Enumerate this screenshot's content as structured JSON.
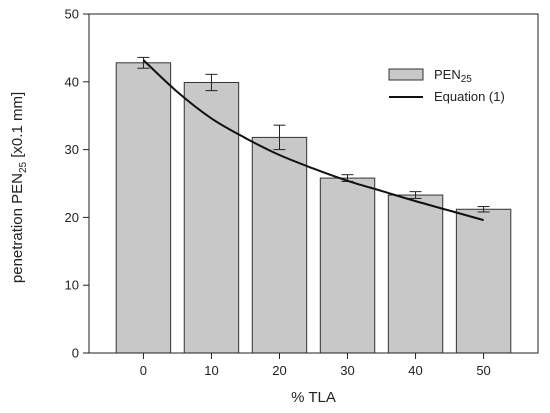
{
  "chart_data": {
    "type": "bar",
    "title": "",
    "xlabel": "% TLA",
    "ylabel": {
      "prefix": "penetration PEN",
      "subscript": "25",
      "suffix": " [x0.1 mm]"
    },
    "categories": [
      "0",
      "10",
      "20",
      "30",
      "40",
      "50"
    ],
    "ylim": [
      0,
      50
    ],
    "yticks": [
      "0",
      "10",
      "20",
      "30",
      "40",
      "50"
    ],
    "grid": false,
    "legend_position": "top-right",
    "series": [
      {
        "kind": "bar",
        "name": {
          "prefix": "PEN",
          "subscript": "25"
        },
        "values": [
          42.8,
          39.9,
          31.8,
          25.8,
          23.3,
          21.2
        ],
        "errors": [
          0.8,
          1.2,
          1.8,
          0.5,
          0.5,
          0.4
        ],
        "color": "#c8c8c8",
        "edge_color": "#333333"
      },
      {
        "kind": "line",
        "name": "Equation (1)",
        "x": [
          0,
          5,
          10,
          15,
          20,
          25,
          30,
          35,
          40,
          45,
          50
        ],
        "values": [
          43.2,
          38.5,
          34.6,
          31.7,
          29.2,
          27.2,
          25.4,
          23.9,
          22.4,
          21.0,
          19.6
        ],
        "color": "#111111"
      }
    ]
  }
}
